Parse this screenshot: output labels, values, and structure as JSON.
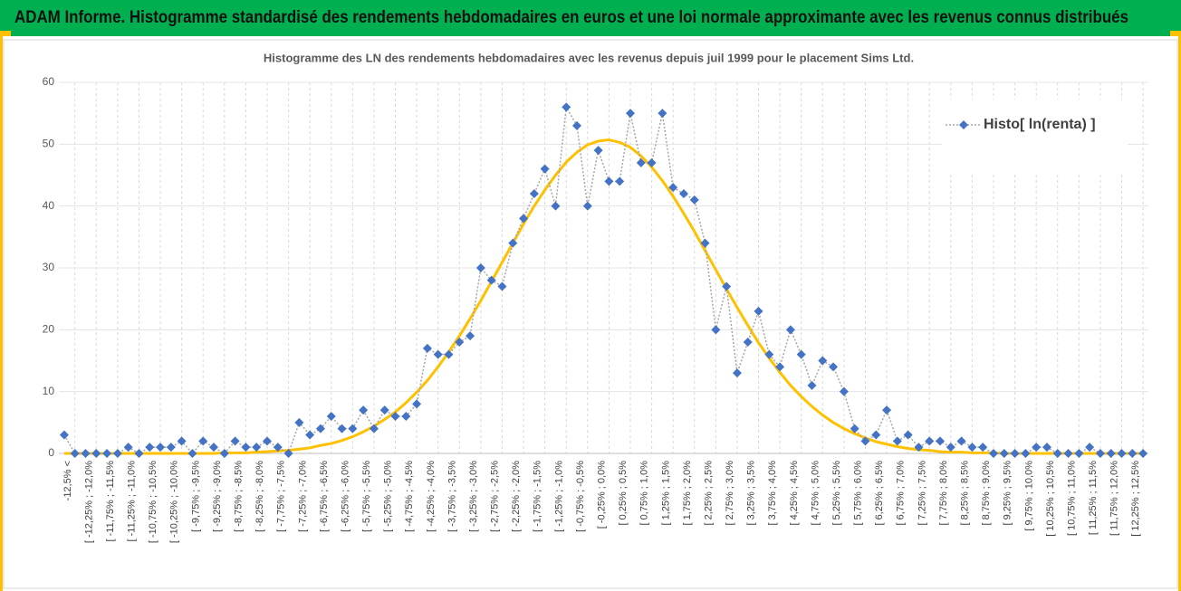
{
  "header": {
    "title": "ADAM Informe. Histogramme standardisé des rendements hebdomadaires en euros et une loi normale approximante avec les revenus connus distribués"
  },
  "chart_data": {
    "type": "line",
    "title": "Histogramme des LN des rendements hebdomadaires avec les revenus depuis juil 1999 pour le placement Sims Ltd.",
    "categories": [
      "-12,5% <",
      null,
      "[ -12,25% ; -12,0%",
      null,
      "[ -11,75% ; -11,5%",
      null,
      "[ -11,25% ; -11,0%",
      null,
      "[ -10,75% ; -10,5%",
      null,
      "[ -10,25% ; -10,0%",
      null,
      "[ -9,75% ; -9,5%",
      null,
      "[ -9,25% ; -9,0%",
      null,
      "[ -8,75% ; -8,5%",
      null,
      "[ -8,25% ; -8,0%",
      null,
      "[ -7,75% ; -7,5%",
      null,
      "[ -7,25% ; -7,0%",
      null,
      "[ -6,75% ; -6,5%",
      null,
      "[ -6,25% ; -6,0%",
      null,
      "[ -5,75% ; -5,5%",
      null,
      "[ -5,25% ; -5,0%",
      null,
      "[ -4,75% ; -4,5%",
      null,
      "[ -4,25% ; -4,0%",
      null,
      "[ -3,75% ; -3,5%",
      null,
      "[ -3,25% ; -3,0%",
      null,
      "[ -2,75% ; -2,5%",
      null,
      "[ -2,25% ; -2,0%",
      null,
      "[ -1,75% ; -1,5%",
      null,
      "[ -1,25% ; -1,0%",
      null,
      "[ -0,75% ; -0,5%",
      null,
      "[ -0,25% ; 0,0%",
      null,
      "[ 0,25% ; 0,5%",
      null,
      "[ 0,75% ; 1,0%",
      null,
      "[ 1,25% ; 1,5%",
      null,
      "[ 1,75% ; 2,0%",
      null,
      "[ 2,25% ; 2,5%",
      null,
      "[ 2,75% ; 3,0%",
      null,
      "[ 3,25% ; 3,5%",
      null,
      "[ 3,75% ; 4,0%",
      null,
      "[ 4,25% ; 4,5%",
      null,
      "[ 4,75% ; 5,0%",
      null,
      "[ 5,25% ; 5,5%",
      null,
      "[ 5,75% ; 6,0%",
      null,
      "[ 6,25% ; 6,5%",
      null,
      "[ 6,75% ; 7,0%",
      null,
      "[ 7,25% ; 7,5%",
      null,
      "[ 7,75% ; 8,0%",
      null,
      "[ 8,25% ; 8,5%",
      null,
      "[ 8,75% ; 9,0%",
      null,
      "[ 9,25% ; 9,5%",
      null,
      "[ 9,75% ; 10,0%",
      null,
      "[ 10,25% ; 10,5%",
      null,
      "[ 10,75% ; 11,0%",
      null,
      "[ 11,25% ; 11,5%",
      null,
      "[ 11,75% ; 12,0%",
      null,
      "[ 12,25% ; 12,5%",
      null
    ],
    "series": [
      {
        "name": "Histo[ ln(renta) ]",
        "color": "#4472c4",
        "line_color": "#a5a5a5",
        "marker": "diamond",
        "line_style": "dotted",
        "values": [
          3,
          0,
          0,
          0,
          0,
          0,
          1,
          0,
          1,
          1,
          1,
          2,
          0,
          2,
          1,
          0,
          2,
          1,
          1,
          2,
          1,
          0,
          5,
          3,
          4,
          6,
          4,
          4,
          7,
          4,
          7,
          6,
          6,
          8,
          17,
          16,
          16,
          18,
          19,
          30,
          28,
          27,
          34,
          38,
          42,
          46,
          40,
          56,
          53,
          40,
          49,
          44,
          44,
          55,
          47,
          47,
          55,
          43,
          42,
          41,
          34,
          20,
          27,
          13,
          18,
          23,
          16,
          14,
          20,
          16,
          11,
          15,
          14,
          10,
          4,
          2,
          3,
          7,
          2,
          3,
          1,
          2,
          2,
          1,
          2,
          1,
          1,
          0,
          0,
          0,
          0,
          1,
          1,
          0,
          0,
          0,
          1,
          0,
          0,
          0,
          0,
          0
        ]
      },
      {
        "color": "#ffc000",
        "marker": "none",
        "line_style": "solid",
        "values": [
          0,
          0,
          0,
          0,
          0,
          0,
          0,
          0,
          0,
          0,
          0,
          0,
          0,
          0,
          0,
          0.1,
          0.1,
          0.1,
          0.2,
          0.3,
          0.4,
          0.5,
          0.7,
          0.9,
          1.3,
          1.6,
          2.1,
          2.7,
          3.5,
          4.4,
          5.5,
          6.7,
          8.2,
          9.9,
          11.8,
          14.0,
          16.4,
          19.0,
          21.8,
          24.7,
          27.8,
          30.9,
          34.0,
          37.1,
          40.0,
          42.6,
          45.0,
          47.1,
          48.7,
          49.9,
          50.5,
          50.7,
          50.3,
          49.5,
          48.1,
          46.3,
          44.1,
          41.6,
          38.8,
          35.9,
          32.8,
          29.7,
          26.6,
          23.6,
          20.7,
          17.9,
          15.4,
          13.1,
          11.0,
          9.2,
          7.6,
          6.2,
          5.0,
          4.0,
          3.2,
          2.5,
          1.9,
          1.5,
          1.1,
          0.8,
          0.6,
          0.5,
          0.3,
          0.2,
          0.2,
          0.1,
          0.1,
          0.1,
          0,
          0,
          0,
          0,
          0,
          0,
          0,
          0,
          0,
          0,
          0,
          0,
          0,
          0
        ]
      }
    ],
    "ylim": [
      0,
      60
    ],
    "yticks": [
      0,
      10,
      20,
      30,
      40,
      50,
      60
    ],
    "grid": true,
    "legend": "upper right"
  }
}
